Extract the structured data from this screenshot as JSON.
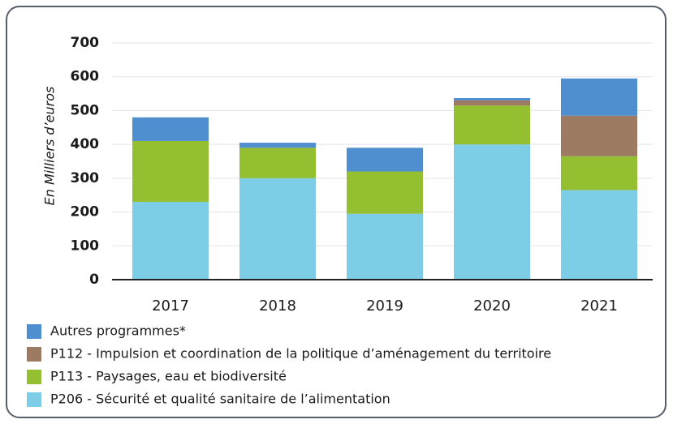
{
  "chart_data": {
    "type": "stacked-bar",
    "y_label": "En Milliers d’euros",
    "categories": [
      "2017",
      "2018",
      "2019",
      "2020",
      "2021"
    ],
    "series": [
      {
        "name": "Autres programmes*",
        "color": "#4f8fcf",
        "values": [
          70,
          15,
          70,
          7,
          110
        ]
      },
      {
        "name": "P112 - Impulsion et coordination de la politique d’aménagement du territoire",
        "color": "#9c7b62",
        "values": [
          0,
          0,
          0,
          15,
          120
        ]
      },
      {
        "name": "P113 - Paysages, eau et biodiversité",
        "color": "#94bf30",
        "values": [
          180,
          90,
          125,
          115,
          100
        ]
      },
      {
        "name": "P206 - Sécurité et qualité sanitaire de l’alimentation",
        "color": "#7ecde6",
        "values": [
          230,
          300,
          195,
          400,
          265
        ]
      }
    ],
    "ylim": [
      0,
      700
    ],
    "yticks": [
      0,
      100,
      200,
      300,
      400,
      500,
      600,
      700
    ],
    "grid": true
  }
}
